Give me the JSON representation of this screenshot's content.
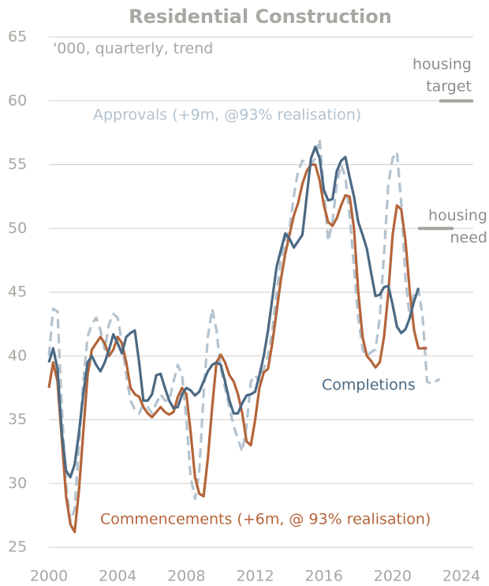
{
  "chart_data": {
    "type": "line",
    "title": "Residential Construction",
    "subtitle": "'000, quarterly, trend",
    "x": [
      2000,
      2000.25,
      2000.5,
      2000.75,
      2001,
      2001.25,
      2001.5,
      2001.75,
      2002,
      2002.25,
      2002.5,
      2002.75,
      2003,
      2003.25,
      2003.5,
      2003.75,
      2004,
      2004.25,
      2004.5,
      2004.75,
      2005,
      2005.25,
      2005.5,
      2005.75,
      2006,
      2006.25,
      2006.5,
      2006.75,
      2007,
      2007.25,
      2007.5,
      2007.75,
      2008,
      2008.25,
      2008.5,
      2008.75,
      2009,
      2009.25,
      2009.5,
      2009.75,
      2010,
      2010.25,
      2010.5,
      2010.75,
      2011,
      2011.25,
      2011.5,
      2011.75,
      2012,
      2012.25,
      2012.5,
      2012.75,
      2013,
      2013.25,
      2013.5,
      2013.75,
      2014,
      2014.25,
      2014.5,
      2014.75,
      2015,
      2015.25,
      2015.5,
      2015.75,
      2016,
      2016.25,
      2016.5,
      2016.75,
      2017,
      2017.25,
      2017.5,
      2017.75,
      2018,
      2018.25,
      2018.5,
      2018.75,
      2019,
      2019.25,
      2019.5,
      2019.75,
      2020,
      2020.25,
      2020.5,
      2020.75,
      2021,
      2021.25,
      2021.5,
      2021.75,
      2022,
      2022.25,
      2022.5,
      2022.75
    ],
    "series": [
      {
        "name": "Approvals (+9m, @93% realisation)",
        "color": "#b3c3cf",
        "dashed": true,
        "values": [
          40,
          43.7,
          43.5,
          36,
          30,
          27,
          28,
          33,
          38,
          41.5,
          42.5,
          43,
          42,
          40.5,
          42.5,
          43.3,
          43,
          41,
          38.5,
          36.5,
          35.8,
          35.5,
          36.2,
          36,
          35.5,
          36.3,
          37,
          36.5,
          36.5,
          38,
          39.3,
          38.5,
          35,
          30.5,
          28.8,
          31,
          37,
          41.5,
          43.7,
          42,
          39,
          37.5,
          36,
          34.5,
          33.5,
          32.5,
          34.5,
          38,
          38.5,
          38,
          39,
          40,
          42,
          45,
          47.5,
          49,
          50,
          52.5,
          54.5,
          55.3,
          55.2,
          55,
          55.5,
          57,
          53,
          49,
          50.5,
          53.5,
          55,
          54,
          51,
          47,
          43,
          40.5,
          40,
          40.3,
          40.5,
          43,
          48,
          53.5,
          55.5,
          56,
          52,
          46,
          43,
          45,
          45.3,
          43,
          38,
          37.8,
          38,
          38.2
        ]
      },
      {
        "name": "Commencements (+6m, @ 93% realisation)",
        "color": "#b4653a",
        "dashed": false,
        "values": [
          37.5,
          39.5,
          38,
          33.5,
          29,
          26.8,
          26.2,
          29.5,
          34,
          38.5,
          40.5,
          41,
          41.5,
          41,
          40,
          40.5,
          41.5,
          41,
          39.5,
          37.5,
          37,
          36.8,
          36,
          35.5,
          35.2,
          35.6,
          36,
          35.6,
          35.4,
          35.6,
          36.8,
          37.5,
          37,
          34,
          30.5,
          29.2,
          29,
          32,
          36,
          39.5,
          40.1,
          39.5,
          38.5,
          38,
          37,
          35.5,
          33.3,
          33,
          35,
          37.5,
          38.7,
          39,
          41,
          43.5,
          46,
          48,
          49.5,
          51,
          52,
          53.5,
          54.5,
          55,
          55,
          53.8,
          51.8,
          50.5,
          50.2,
          50.8,
          51.8,
          52.6,
          52.5,
          50,
          45,
          41.5,
          40,
          39.6,
          39.1,
          39.5,
          41.5,
          45,
          49.5,
          51.8,
          51.5,
          49,
          45,
          42,
          40.6,
          40.6,
          40.6,
          null,
          null,
          null
        ]
      },
      {
        "name": "Completions",
        "color": "#4b6983",
        "dashed": false,
        "values": [
          39.5,
          40.6,
          39,
          34,
          31,
          30.5,
          31.5,
          34,
          37,
          39.5,
          40,
          39.3,
          38.8,
          39.5,
          40.5,
          41.7,
          41,
          40.2,
          41.5,
          41.8,
          42,
          39.5,
          36.5,
          36.5,
          37,
          38.5,
          38.6,
          37.5,
          36.5,
          35.9,
          36,
          37,
          37.5,
          37.3,
          36.9,
          37.2,
          38,
          38.8,
          39.3,
          39.5,
          39.3,
          38,
          36.5,
          35.5,
          35.5,
          36.3,
          36.9,
          37,
          37.2,
          38.5,
          40,
          42,
          44.5,
          47,
          48.3,
          49.6,
          49.2,
          48.5,
          49,
          49.5,
          52.5,
          55.5,
          56.4,
          55.5,
          53,
          52.2,
          52.3,
          54.5,
          55.3,
          55.6,
          54,
          52.5,
          50.5,
          49.5,
          48.4,
          46.5,
          44.7,
          44.8,
          45.4,
          45.5,
          44,
          42.3,
          41.8,
          42.1,
          43,
          44.3,
          45.3,
          null,
          null,
          null,
          null,
          null
        ]
      }
    ],
    "reference_lines": [
      {
        "label_lines": [
          "housing",
          "target"
        ],
        "value": 60,
        "color": "#a7a49f"
      },
      {
        "label_lines": [
          "housing",
          "need"
        ],
        "value": 50,
        "color": "#a7a49f"
      }
    ],
    "xlim": [
      2000,
      2024
    ],
    "xticks": [
      2000,
      2004,
      2008,
      2012,
      2016,
      2020,
      2024
    ],
    "ylim": [
      25,
      65
    ],
    "yticks": [
      25,
      30,
      35,
      40,
      45,
      50,
      55,
      60,
      65
    ],
    "grid": true
  }
}
